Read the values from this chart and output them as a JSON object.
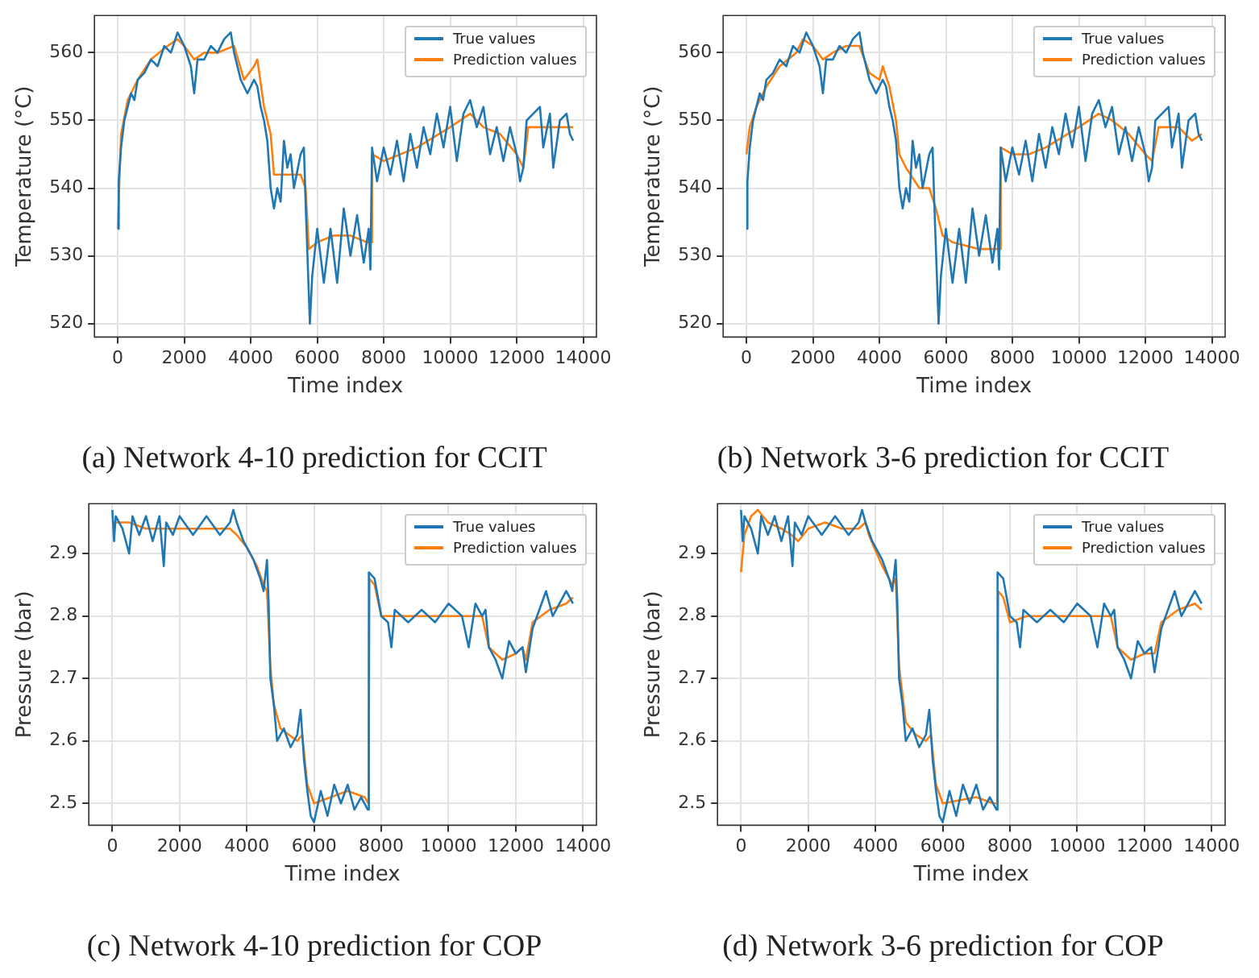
{
  "chart_data": [
    {
      "type": "line",
      "title": "(a) Network 4-10 prediction for CCIT",
      "xlabel": "Time index",
      "ylabel": "Temperature (°C)",
      "xlim": [
        -700,
        14400
      ],
      "xticks": [
        0,
        2000,
        4000,
        6000,
        8000,
        10000,
        12000,
        14000
      ],
      "ylim": [
        518,
        565.5
      ],
      "yticks": [
        520,
        530,
        540,
        550,
        560
      ],
      "grid": true,
      "legend": "top right",
      "series": [
        {
          "name": "True values",
          "color": "#1f77b4",
          "x": [
            0,
            30,
            100,
            200,
            300,
            400,
            500,
            600,
            800,
            1000,
            1200,
            1400,
            1600,
            1800,
            2000,
            2200,
            2300,
            2400,
            2600,
            2800,
            3000,
            3200,
            3400,
            3500,
            3700,
            3900,
            4100,
            4200,
            4300,
            4400,
            4500,
            4600,
            4700,
            4800,
            4900,
            5000,
            5100,
            5200,
            5300,
            5500,
            5600,
            5650,
            5700,
            5780,
            5850,
            6000,
            6200,
            6400,
            6600,
            6800,
            7000,
            7200,
            7400,
            7550,
            7600,
            7650,
            7800,
            8000,
            8200,
            8400,
            8600,
            8800,
            9000,
            9200,
            9400,
            9600,
            9800,
            10000,
            10200,
            10400,
            10600,
            10800,
            11000,
            11200,
            11400,
            11600,
            11800,
            12000,
            12100,
            12200,
            12300,
            12500,
            12700,
            12800,
            13000,
            13100,
            13300,
            13500,
            13600,
            13700
          ],
          "values": [
            534,
            541,
            546,
            550,
            552,
            554,
            553,
            556,
            557,
            559,
            558,
            561,
            560,
            563,
            561,
            558,
            554,
            559,
            559,
            561,
            560,
            562,
            563,
            560,
            556,
            554,
            556,
            555,
            552,
            550,
            547,
            540,
            537,
            540,
            538,
            547,
            543,
            545,
            540,
            545,
            546,
            538,
            531,
            520,
            527,
            534,
            526,
            534,
            526,
            537,
            530,
            536,
            529,
            534,
            528,
            546,
            541,
            546,
            542,
            547,
            541,
            548,
            543,
            549,
            545,
            551,
            546,
            552,
            544,
            551,
            553,
            549,
            552,
            545,
            549,
            544,
            549,
            545,
            541,
            543,
            550,
            551,
            552,
            546,
            551,
            543,
            550,
            551,
            548,
            547
          ]
        },
        {
          "name": "Prediction values",
          "color": "#ff7f0e",
          "x": [
            0,
            100,
            300,
            600,
            1000,
            1500,
            1800,
            2000,
            2300,
            2600,
            3000,
            3500,
            3800,
            4100,
            4200,
            4400,
            4600,
            4700,
            5000,
            5500,
            5650,
            5750,
            6000,
            6500,
            7000,
            7500,
            7620,
            7650,
            8000,
            9000,
            10000,
            10600,
            11000,
            11500,
            12000,
            12200,
            12350,
            13000,
            13700
          ],
          "values": [
            534,
            548,
            553,
            556,
            559,
            561,
            562,
            561,
            559,
            560,
            560,
            561,
            556,
            558,
            559,
            552,
            548,
            542,
            542,
            542,
            540,
            531,
            532,
            533,
            533,
            532,
            532,
            545,
            544,
            546,
            549,
            551,
            549,
            548,
            545,
            543,
            549,
            549,
            549
          ]
        }
      ]
    },
    {
      "type": "line",
      "title": "(b) Network 3-6 prediction for CCIT",
      "xlabel": "Time index",
      "ylabel": "Temperature (°C)",
      "xlim": [
        -700,
        14400
      ],
      "xticks": [
        0,
        2000,
        4000,
        6000,
        8000,
        10000,
        12000,
        14000
      ],
      "ylim": [
        518,
        565.5
      ],
      "yticks": [
        520,
        530,
        540,
        550,
        560
      ],
      "grid": true,
      "legend": "top right",
      "series": [
        {
          "name": "True values",
          "color": "#1f77b4",
          "x": [
            0,
            30,
            100,
            200,
            300,
            400,
            500,
            600,
            800,
            1000,
            1200,
            1400,
            1600,
            1800,
            2000,
            2200,
            2300,
            2400,
            2600,
            2800,
            3000,
            3200,
            3400,
            3500,
            3700,
            3900,
            4100,
            4200,
            4300,
            4400,
            4500,
            4600,
            4700,
            4800,
            4900,
            5000,
            5100,
            5200,
            5300,
            5500,
            5600,
            5650,
            5700,
            5780,
            5850,
            6000,
            6200,
            6400,
            6600,
            6800,
            7000,
            7200,
            7400,
            7550,
            7600,
            7650,
            7800,
            8000,
            8200,
            8400,
            8600,
            8800,
            9000,
            9200,
            9400,
            9600,
            9800,
            10000,
            10200,
            10400,
            10600,
            10800,
            11000,
            11200,
            11400,
            11600,
            11800,
            12000,
            12100,
            12200,
            12300,
            12500,
            12700,
            12800,
            13000,
            13100,
            13300,
            13500,
            13600,
            13700
          ],
          "values": [
            534,
            541,
            546,
            550,
            552,
            554,
            553,
            556,
            557,
            559,
            558,
            561,
            560,
            563,
            561,
            558,
            554,
            559,
            559,
            561,
            560,
            562,
            563,
            560,
            556,
            554,
            556,
            555,
            552,
            550,
            547,
            540,
            537,
            540,
            538,
            547,
            543,
            545,
            540,
            545,
            546,
            538,
            531,
            520,
            527,
            534,
            526,
            534,
            526,
            537,
            530,
            536,
            529,
            534,
            528,
            546,
            541,
            546,
            542,
            547,
            541,
            548,
            543,
            549,
            545,
            551,
            546,
            552,
            544,
            551,
            553,
            549,
            552,
            545,
            549,
            544,
            549,
            545,
            541,
            543,
            550,
            551,
            552,
            546,
            551,
            543,
            550,
            551,
            548,
            547
          ]
        },
        {
          "name": "Prediction values",
          "color": "#ff7f0e",
          "x": [
            0,
            100,
            300,
            600,
            1000,
            1500,
            1700,
            2000,
            2300,
            2600,
            3000,
            3400,
            3700,
            4000,
            4100,
            4300,
            4500,
            4600,
            4800,
            5200,
            5500,
            5700,
            5900,
            6200,
            7000,
            7500,
            7620,
            7650,
            8000,
            8500,
            9000,
            10000,
            10600,
            11000,
            11500,
            12000,
            12200,
            12400,
            13000,
            13400,
            13700
          ],
          "values": [
            545,
            549,
            552,
            555,
            558,
            560,
            562,
            561,
            559,
            560,
            561,
            561,
            557,
            556,
            558,
            555,
            550,
            545,
            543,
            540,
            540,
            537,
            533,
            532,
            531,
            531,
            531,
            546,
            545,
            545,
            546,
            549,
            551,
            550,
            548,
            545,
            544,
            549,
            549,
            547,
            548
          ]
        }
      ]
    },
    {
      "type": "line",
      "title": "(c) Network 4-10 prediction for COP",
      "xlabel": "Time index",
      "ylabel": "Pressure (bar)",
      "xlim": [
        -700,
        14400
      ],
      "xticks": [
        0,
        2000,
        4000,
        6000,
        8000,
        10000,
        12000,
        14000
      ],
      "ylim": [
        2.465,
        2.98
      ],
      "yticks": [
        2.5,
        2.6,
        2.7,
        2.8,
        2.9
      ],
      "grid": true,
      "legend": "top right",
      "series": [
        {
          "name": "True values",
          "color": "#1f77b4",
          "x": [
            0,
            50,
            100,
            300,
            500,
            600,
            800,
            1000,
            1200,
            1400,
            1530,
            1600,
            1800,
            2000,
            2400,
            2800,
            3200,
            3500,
            3600,
            3700,
            3900,
            4200,
            4400,
            4500,
            4600,
            4650,
            4700,
            4800,
            4900,
            5100,
            5300,
            5500,
            5600,
            5700,
            5800,
            5900,
            6000,
            6200,
            6400,
            6600,
            6800,
            7000,
            7200,
            7400,
            7600,
            7630,
            7800,
            8000,
            8200,
            8300,
            8400,
            8800,
            9200,
            9600,
            10000,
            10400,
            10600,
            10800,
            11000,
            11100,
            11200,
            11400,
            11600,
            11800,
            12000,
            12200,
            12300,
            12500,
            12700,
            12900,
            13100,
            13300,
            13500,
            13700
          ],
          "values": [
            2.97,
            2.92,
            2.96,
            2.94,
            2.9,
            2.96,
            2.93,
            2.96,
            2.92,
            2.96,
            2.88,
            2.95,
            2.93,
            2.96,
            2.93,
            2.96,
            2.93,
            2.95,
            2.97,
            2.95,
            2.92,
            2.89,
            2.86,
            2.84,
            2.89,
            2.82,
            2.7,
            2.66,
            2.6,
            2.62,
            2.59,
            2.61,
            2.65,
            2.57,
            2.52,
            2.48,
            2.47,
            2.52,
            2.48,
            2.53,
            2.5,
            2.53,
            2.49,
            2.51,
            2.49,
            2.87,
            2.86,
            2.8,
            2.79,
            2.75,
            2.81,
            2.79,
            2.81,
            2.79,
            2.82,
            2.8,
            2.75,
            2.82,
            2.8,
            2.81,
            2.75,
            2.73,
            2.7,
            2.76,
            2.74,
            2.75,
            2.71,
            2.78,
            2.81,
            2.84,
            2.8,
            2.82,
            2.84,
            2.82
          ]
        },
        {
          "name": "Prediction values",
          "color": "#ff7f0e",
          "x": [
            0,
            500,
            1000,
            2000,
            3000,
            3500,
            3700,
            4000,
            4300,
            4500,
            4600,
            4700,
            4800,
            5000,
            5500,
            5650,
            5800,
            6000,
            6500,
            7000,
            7500,
            7620,
            7650,
            7800,
            8000,
            8500,
            9500,
            10500,
            11000,
            11200,
            11600,
            12000,
            12200,
            12300,
            12500,
            13000,
            13500,
            13700
          ],
          "values": [
            2.95,
            2.95,
            2.94,
            2.94,
            2.94,
            2.94,
            2.93,
            2.91,
            2.88,
            2.85,
            2.84,
            2.72,
            2.66,
            2.62,
            2.6,
            2.61,
            2.53,
            2.5,
            2.51,
            2.52,
            2.51,
            2.5,
            2.86,
            2.85,
            2.8,
            2.8,
            2.8,
            2.8,
            2.8,
            2.75,
            2.73,
            2.74,
            2.75,
            2.73,
            2.79,
            2.81,
            2.82,
            2.83
          ]
        }
      ]
    },
    {
      "type": "line",
      "title": "(d) Network 3-6 prediction for COP",
      "xlabel": "Time index",
      "ylabel": "Pressure (bar)",
      "xlim": [
        -700,
        14400
      ],
      "xticks": [
        0,
        2000,
        4000,
        6000,
        8000,
        10000,
        12000,
        14000
      ],
      "ylim": [
        2.465,
        2.98
      ],
      "yticks": [
        2.5,
        2.6,
        2.7,
        2.8,
        2.9
      ],
      "grid": true,
      "legend": "top right",
      "series": [
        {
          "name": "True values",
          "color": "#1f77b4",
          "x": [
            0,
            50,
            100,
            300,
            500,
            600,
            800,
            1000,
            1200,
            1400,
            1530,
            1600,
            1800,
            2000,
            2400,
            2800,
            3200,
            3500,
            3600,
            3700,
            3900,
            4200,
            4400,
            4500,
            4600,
            4650,
            4700,
            4800,
            4900,
            5100,
            5300,
            5500,
            5600,
            5700,
            5800,
            5900,
            6000,
            6200,
            6400,
            6600,
            6800,
            7000,
            7200,
            7400,
            7600,
            7630,
            7800,
            8000,
            8200,
            8300,
            8400,
            8800,
            9200,
            9600,
            10000,
            10400,
            10600,
            10800,
            11000,
            11100,
            11200,
            11400,
            11600,
            11800,
            12000,
            12200,
            12300,
            12500,
            12700,
            12900,
            13100,
            13300,
            13500,
            13700
          ],
          "values": [
            2.97,
            2.92,
            2.96,
            2.94,
            2.9,
            2.96,
            2.93,
            2.96,
            2.92,
            2.96,
            2.88,
            2.95,
            2.93,
            2.96,
            2.93,
            2.96,
            2.93,
            2.95,
            2.97,
            2.95,
            2.92,
            2.89,
            2.86,
            2.84,
            2.89,
            2.82,
            2.7,
            2.66,
            2.6,
            2.62,
            2.59,
            2.61,
            2.65,
            2.57,
            2.52,
            2.48,
            2.47,
            2.52,
            2.48,
            2.53,
            2.5,
            2.53,
            2.49,
            2.51,
            2.49,
            2.87,
            2.86,
            2.8,
            2.79,
            2.75,
            2.81,
            2.79,
            2.81,
            2.79,
            2.82,
            2.8,
            2.75,
            2.82,
            2.8,
            2.81,
            2.75,
            2.73,
            2.7,
            2.76,
            2.74,
            2.75,
            2.71,
            2.78,
            2.81,
            2.84,
            2.8,
            2.82,
            2.84,
            2.82
          ]
        },
        {
          "name": "Prediction values",
          "color": "#ff7f0e",
          "x": [
            0,
            100,
            300,
            500,
            800,
            1200,
            1500,
            1700,
            2000,
            2500,
            3000,
            3500,
            3700,
            3800,
            4200,
            4500,
            4600,
            4700,
            4900,
            5200,
            5500,
            5650,
            5800,
            6000,
            7000,
            7500,
            7620,
            7650,
            7800,
            8000,
            8500,
            9500,
            10500,
            11000,
            11200,
            11600,
            12000,
            12300,
            12500,
            13000,
            13500,
            13700
          ],
          "values": [
            2.87,
            2.93,
            2.96,
            2.97,
            2.95,
            2.94,
            2.93,
            2.92,
            2.94,
            2.95,
            2.94,
            2.94,
            2.95,
            2.93,
            2.88,
            2.85,
            2.86,
            2.72,
            2.63,
            2.61,
            2.6,
            2.61,
            2.53,
            2.5,
            2.51,
            2.5,
            2.5,
            2.84,
            2.83,
            2.79,
            2.8,
            2.8,
            2.8,
            2.8,
            2.75,
            2.73,
            2.74,
            2.74,
            2.79,
            2.81,
            2.82,
            2.81
          ]
        }
      ]
    }
  ]
}
